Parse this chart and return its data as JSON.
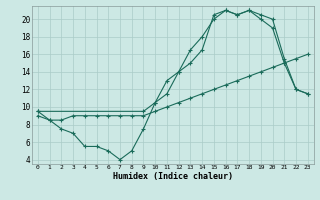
{
  "xlabel": "Humidex (Indice chaleur)",
  "bg_color": "#cce8e4",
  "grid_color": "#aaccc8",
  "line_color": "#1a6b5a",
  "xlim": [
    -0.5,
    23.5
  ],
  "ylim": [
    3.5,
    21.5
  ],
  "xticks": [
    0,
    1,
    2,
    3,
    4,
    5,
    6,
    7,
    8,
    9,
    10,
    11,
    12,
    13,
    14,
    15,
    16,
    17,
    18,
    19,
    20,
    21,
    22,
    23
  ],
  "yticks": [
    4,
    6,
    8,
    10,
    12,
    14,
    16,
    18,
    20
  ],
  "line1_x": [
    0,
    1,
    2,
    3,
    4,
    5,
    6,
    7,
    8,
    9,
    10,
    11,
    12,
    13,
    14,
    15,
    16,
    17,
    18,
    19,
    20,
    21,
    22,
    23
  ],
  "line1_y": [
    9.5,
    8.5,
    7.5,
    7.0,
    5.5,
    5.5,
    5.0,
    4.0,
    5.0,
    7.5,
    10.5,
    13.0,
    14.0,
    16.5,
    18.0,
    20.0,
    21.0,
    20.5,
    21.0,
    20.0,
    19.0,
    15.0,
    12.0,
    11.5
  ],
  "line2_x": [
    0,
    1,
    2,
    3,
    4,
    5,
    6,
    7,
    8,
    9,
    10,
    11,
    12,
    13,
    14,
    15,
    16,
    17,
    18,
    19,
    20,
    21,
    22,
    23
  ],
  "line2_y": [
    9.0,
    8.5,
    8.5,
    9.0,
    9.0,
    9.0,
    9.0,
    9.0,
    9.0,
    9.0,
    9.5,
    10.0,
    10.5,
    11.0,
    11.5,
    12.0,
    12.5,
    13.0,
    13.5,
    14.0,
    14.5,
    15.0,
    15.5,
    16.0
  ],
  "line3_x": [
    0,
    9,
    10,
    11,
    12,
    13,
    14,
    15,
    16,
    17,
    18,
    19,
    20,
    21,
    22,
    23
  ],
  "line3_y": [
    9.5,
    9.5,
    10.5,
    11.5,
    14.0,
    15.0,
    16.5,
    20.5,
    21.0,
    20.5,
    21.0,
    20.5,
    20.0,
    15.5,
    12.0,
    11.5
  ]
}
